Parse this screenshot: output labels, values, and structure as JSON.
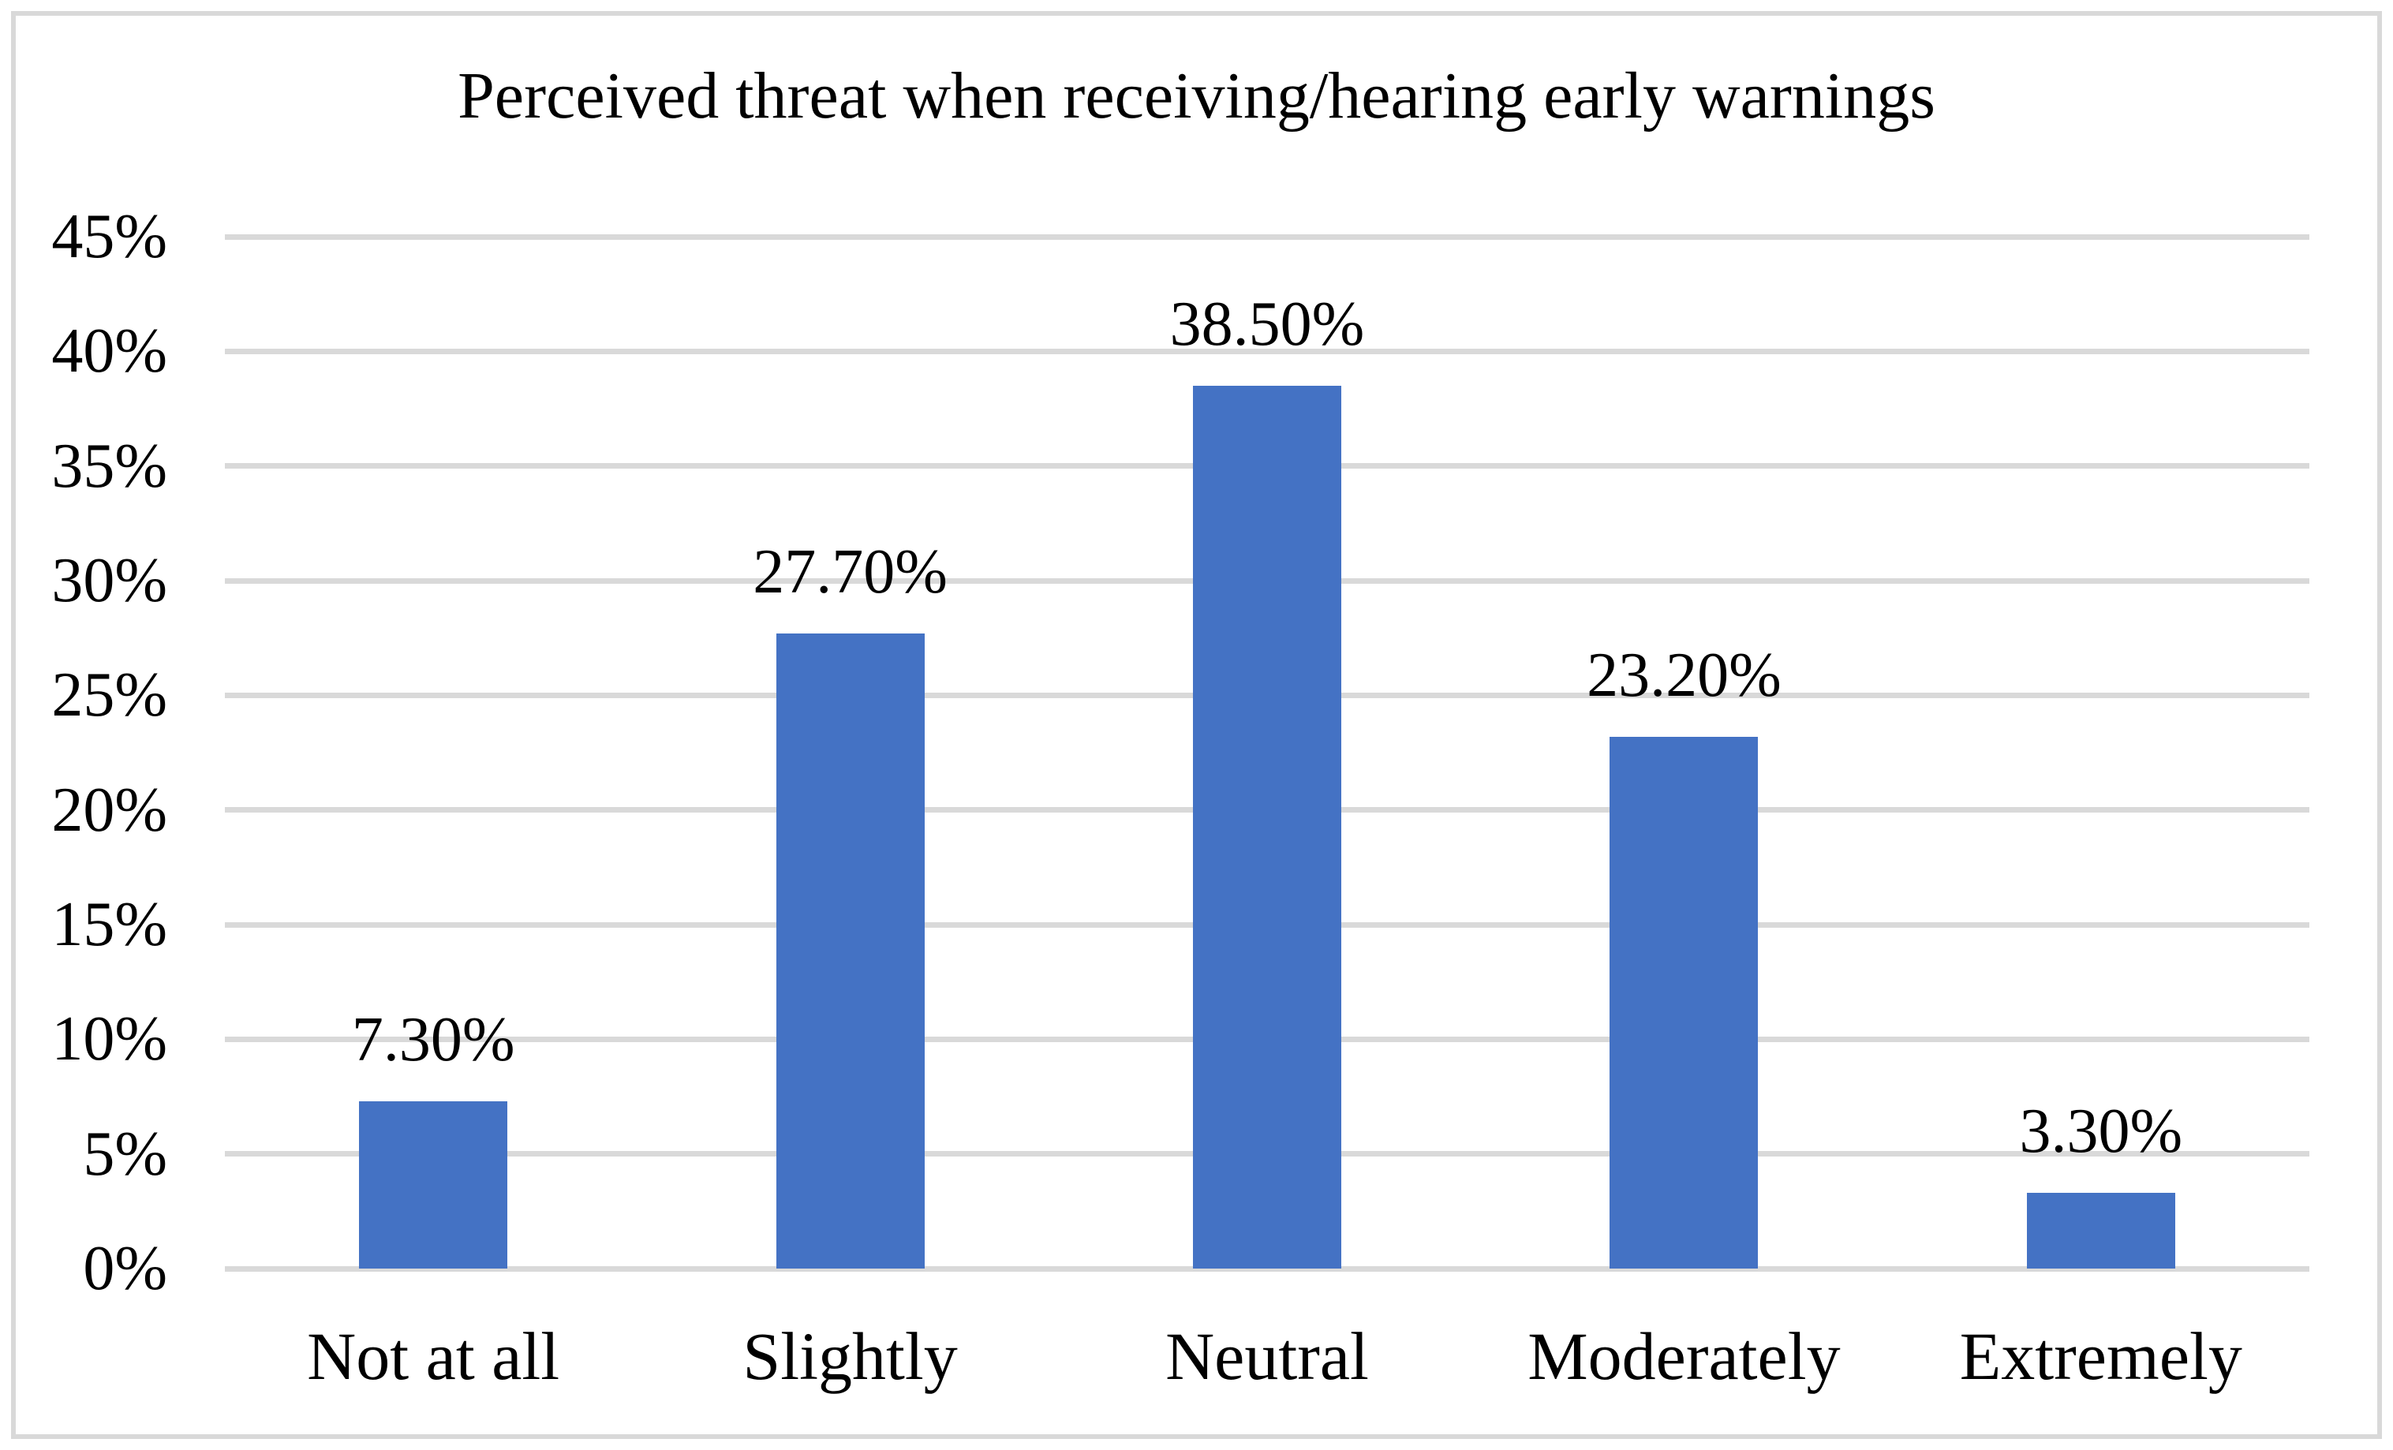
{
  "figure": {
    "title": "Perceived threat when receiving/hearing early warnings"
  },
  "chart_data": {
    "type": "bar",
    "title": "Perceived threat when receiving/hearing early warnings",
    "categories": [
      "Not at all",
      "Slightly",
      "Neutral",
      "Moderately",
      "Extremely"
    ],
    "values": [
      7.3,
      27.7,
      38.5,
      23.2,
      3.3
    ],
    "data_labels": [
      "7.30%",
      "27.70%",
      "38.50%",
      "23.20%",
      "3.30%"
    ],
    "y_ticks": {
      "values": [
        0,
        5,
        10,
        15,
        20,
        25,
        30,
        35,
        40,
        45
      ],
      "labels": [
        "0%",
        "5%",
        "10%",
        "15%",
        "20%",
        "25%",
        "30%",
        "35%",
        "40%",
        "45%"
      ]
    },
    "ylim": [
      0,
      45
    ],
    "xlabel": "",
    "ylabel": "",
    "grid": true,
    "legend": false,
    "colors": {
      "bar": "#4472C4",
      "gridline": "#D9D9D9",
      "border": "#D9D9D9",
      "text": "#000000",
      "background": "#FFFFFF"
    }
  }
}
